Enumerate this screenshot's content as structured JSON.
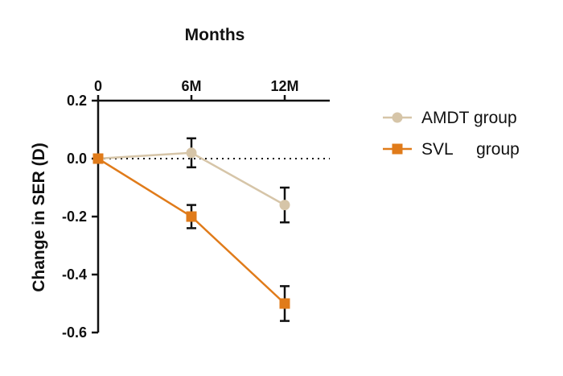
{
  "chart_data": {
    "type": "line",
    "title": "Months",
    "ylabel": "Change in SER (D)",
    "x_categories": [
      "0",
      "6M",
      "12M"
    ],
    "ylim": [
      -0.6,
      0.2
    ],
    "y_ticks": [
      "0.2",
      "0.0",
      "-0.2",
      "-0.4",
      "-0.6"
    ],
    "y_tick_values": [
      0.2,
      0.0,
      -0.2,
      -0.4,
      -0.6
    ],
    "reference_line": 0.0,
    "legend_position": "right",
    "series": [
      {
        "name": "AMDT group",
        "legend_label": "AMDT group",
        "color": "#d6c5a8",
        "marker": "circle",
        "values": [
          0.0,
          0.02,
          -0.16
        ],
        "error": [
          0.0,
          0.05,
          0.06
        ]
      },
      {
        "name": "SVL group",
        "legend_label": "SVL     group",
        "color": "#e07b1a",
        "marker": "square",
        "values": [
          0.0,
          -0.2,
          -0.5
        ],
        "error": [
          0.0,
          0.04,
          0.06
        ]
      }
    ]
  }
}
